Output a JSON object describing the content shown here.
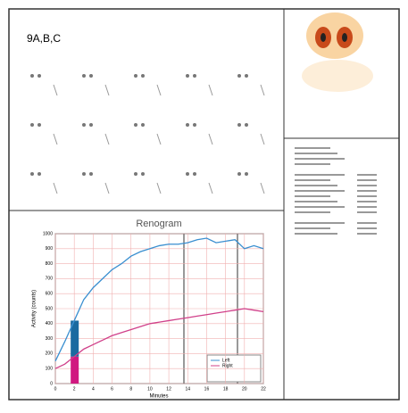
{
  "panel_label": "9A,B,C",
  "chart_data": {
    "type": "line",
    "title": "Renogram",
    "x_label": "Minutes",
    "y_label": "Activity (counts)",
    "x": [
      0,
      1,
      2,
      3,
      4,
      5,
      6,
      7,
      8,
      9,
      10,
      11,
      12,
      13,
      14,
      15,
      16,
      17,
      18,
      19,
      20,
      21,
      22
    ],
    "series": [
      {
        "name": "Left",
        "color": "#3a8fd0",
        "values": [
          150,
          280,
          420,
          560,
          640,
          700,
          760,
          800,
          850,
          880,
          900,
          920,
          930,
          930,
          940,
          960,
          970,
          940,
          950,
          960,
          900,
          920,
          900
        ]
      },
      {
        "name": "Right",
        "color": "#d0408a",
        "values": [
          100,
          130,
          180,
          230,
          260,
          290,
          320,
          340,
          360,
          380,
          400,
          410,
          420,
          430,
          440,
          450,
          460,
          470,
          480,
          490,
          500,
          490,
          480
        ]
      }
    ],
    "xlim": [
      0,
      22
    ],
    "xticks": [
      0,
      2,
      4,
      6,
      8,
      10,
      12,
      14,
      16,
      18,
      20,
      22
    ],
    "ylim": [
      0,
      1000
    ],
    "yticks": [
      0,
      100,
      200,
      300,
      400,
      500,
      600,
      700,
      800,
      900,
      1000
    ],
    "grid": true
  }
}
